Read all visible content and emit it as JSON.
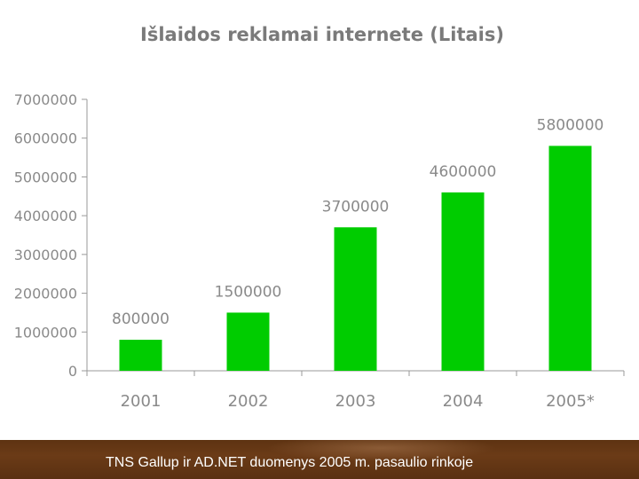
{
  "chart_data": {
    "type": "bar",
    "title": "Išlaidos reklamai internete (Litais)",
    "categories": [
      "2001",
      "2002",
      "2003",
      "2004",
      "2005*"
    ],
    "values": [
      800000,
      1500000,
      3700000,
      4600000,
      5800000
    ],
    "data_labels": [
      "800000",
      "1500000",
      "3700000",
      "4600000",
      "5800000"
    ],
    "ylim": [
      0,
      7000000
    ],
    "yticks": [
      0,
      1000000,
      2000000,
      3000000,
      4000000,
      5000000,
      6000000,
      7000000
    ],
    "ytick_labels": [
      "0",
      "1000000",
      "2000000",
      "3000000",
      "4000000",
      "5000000",
      "6000000",
      "7000000"
    ],
    "xlabel": "",
    "ylabel": "",
    "grid": false,
    "bar_color": "#00cc00"
  },
  "footer": {
    "source_text": "TNS Gallup ir AD.NET duomenys  2005 m. pasaulio rinkoje"
  }
}
